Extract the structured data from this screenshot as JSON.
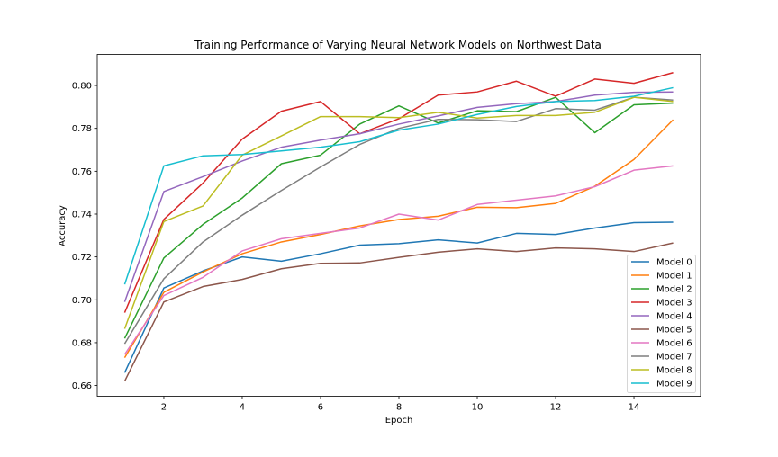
{
  "chart_data": {
    "type": "line",
    "title": "Training Performance of Varying Neural Network Models on Northwest Data",
    "xlabel": "Epoch",
    "ylabel": "Accuracy",
    "xlim": [
      0.3,
      15.7
    ],
    "ylim": [
      0.655,
      0.8145
    ],
    "xticks": [
      2,
      4,
      6,
      8,
      10,
      12,
      14
    ],
    "xtick_labels": [
      "2",
      "4",
      "6",
      "8",
      "10",
      "12",
      "14"
    ],
    "yticks": [
      0.66,
      0.68,
      0.7,
      0.72,
      0.74,
      0.76,
      0.78,
      0.8
    ],
    "ytick_labels": [
      "0.66",
      "0.68",
      "0.70",
      "0.72",
      "0.74",
      "0.76",
      "0.78",
      "0.80"
    ],
    "grid": false,
    "legend_position": "lower-right",
    "x": [
      1,
      2,
      3,
      4,
      5,
      6,
      7,
      8,
      9,
      10,
      11,
      12,
      13,
      14,
      15
    ],
    "series": [
      {
        "name": "Model 0",
        "color": "#1f77b4",
        "values": [
          0.666,
          0.7055,
          0.7135,
          0.72,
          0.718,
          0.7215,
          0.7255,
          0.7262,
          0.728,
          0.7265,
          0.731,
          0.7305,
          0.7335,
          0.736,
          0.7362
        ]
      },
      {
        "name": "Model 1",
        "color": "#ff7f0e",
        "values": [
          0.673,
          0.7035,
          0.713,
          0.7215,
          0.727,
          0.7305,
          0.7345,
          0.7375,
          0.739,
          0.7432,
          0.743,
          0.745,
          0.753,
          0.7655,
          0.784
        ]
      },
      {
        "name": "Model 2",
        "color": "#2ca02c",
        "values": [
          0.682,
          0.7195,
          0.7352,
          0.7475,
          0.7635,
          0.7675,
          0.782,
          0.7905,
          0.7825,
          0.7882,
          0.7878,
          0.7945,
          0.778,
          0.791,
          0.7918
        ]
      },
      {
        "name": "Model 3",
        "color": "#d62728",
        "values": [
          0.694,
          0.7375,
          0.7545,
          0.775,
          0.788,
          0.7925,
          0.7775,
          0.7845,
          0.7955,
          0.797,
          0.802,
          0.795,
          0.803,
          0.801,
          0.806
        ]
      },
      {
        "name": "Model 4",
        "color": "#9467bd",
        "values": [
          0.699,
          0.7505,
          0.7575,
          0.7648,
          0.7712,
          0.7745,
          0.7775,
          0.782,
          0.7858,
          0.7898,
          0.7915,
          0.7925,
          0.7955,
          0.7968,
          0.797
        ]
      },
      {
        "name": "Model 5",
        "color": "#8c564b",
        "values": [
          0.662,
          0.699,
          0.7062,
          0.7095,
          0.7145,
          0.717,
          0.7172,
          0.7198,
          0.7222,
          0.7238,
          0.7225,
          0.7242,
          0.7238,
          0.7225,
          0.7265
        ]
      },
      {
        "name": "Model 6",
        "color": "#e377c2",
        "values": [
          0.6745,
          0.702,
          0.7105,
          0.7228,
          0.7285,
          0.731,
          0.7335,
          0.74,
          0.7372,
          0.7445,
          0.7465,
          0.7485,
          0.7528,
          0.7605,
          0.7625
        ]
      },
      {
        "name": "Model 7",
        "color": "#7f7f7f",
        "values": [
          0.6795,
          0.7098,
          0.727,
          0.7395,
          0.751,
          0.762,
          0.7725,
          0.78,
          0.7842,
          0.784,
          0.7832,
          0.7892,
          0.7885,
          0.7945,
          0.7932
        ]
      },
      {
        "name": "Model 8",
        "color": "#bcbd22",
        "values": [
          0.6865,
          0.7365,
          0.7438,
          0.7675,
          0.7765,
          0.7855,
          0.7855,
          0.785,
          0.7875,
          0.7848,
          0.786,
          0.786,
          0.7875,
          0.7945,
          0.7925
        ]
      },
      {
        "name": "Model 9",
        "color": "#17becf",
        "values": [
          0.7072,
          0.7625,
          0.7672,
          0.7678,
          0.7695,
          0.7712,
          0.7738,
          0.7792,
          0.782,
          0.7865,
          0.7902,
          0.7925,
          0.793,
          0.795,
          0.799
        ]
      }
    ]
  }
}
